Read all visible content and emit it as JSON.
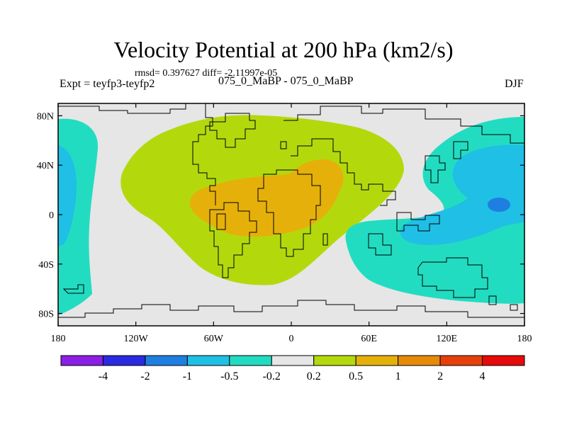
{
  "chart_data": {
    "type": "filled-contour-map",
    "title": "Velocity Potential at 200 hPa (km2/s)",
    "stats_text": "rmsd= 0.397627 diff= -2.11997e-05",
    "left_label": "Expt = teyfp3-teyfp2",
    "center_label": "075_0_MaBP - 075_0_MaBP",
    "right_label": "DJF",
    "x_axis": {
      "range": [
        -180,
        180
      ],
      "tick_labels": [
        "180",
        "120W",
        "60W",
        "0",
        "60E",
        "120E",
        "180"
      ]
    },
    "y_axis": {
      "range": [
        -90,
        90
      ],
      "tick_labels": [
        "80N",
        "40N",
        "0",
        "40S",
        "80S"
      ]
    },
    "colorbar": {
      "levels": [
        "-4",
        "-2",
        "-1",
        "-0.5",
        "-0.2",
        "0.2",
        "0.5",
        "1",
        "2",
        "4"
      ],
      "colors": [
        "#8b1fe6",
        "#2a2ae0",
        "#1e7fe0",
        "#1fbfe6",
        "#22dcc1",
        "#e6e6e6",
        "#b3d90d",
        "#e6b00a",
        "#e68a0a",
        "#e6400a",
        "#e60a0a"
      ]
    },
    "regions": [
      {
        "name": "west-pacific-negative",
        "level_index": 4
      },
      {
        "name": "west-pacific-core",
        "level_index": 3
      },
      {
        "name": "central-positive",
        "level_index": 6
      },
      {
        "name": "central-core",
        "level_index": 7
      },
      {
        "name": "east-negative",
        "level_index": 4
      },
      {
        "name": "east-core",
        "level_index": 3
      },
      {
        "name": "east-center",
        "level_index": 2
      }
    ]
  }
}
